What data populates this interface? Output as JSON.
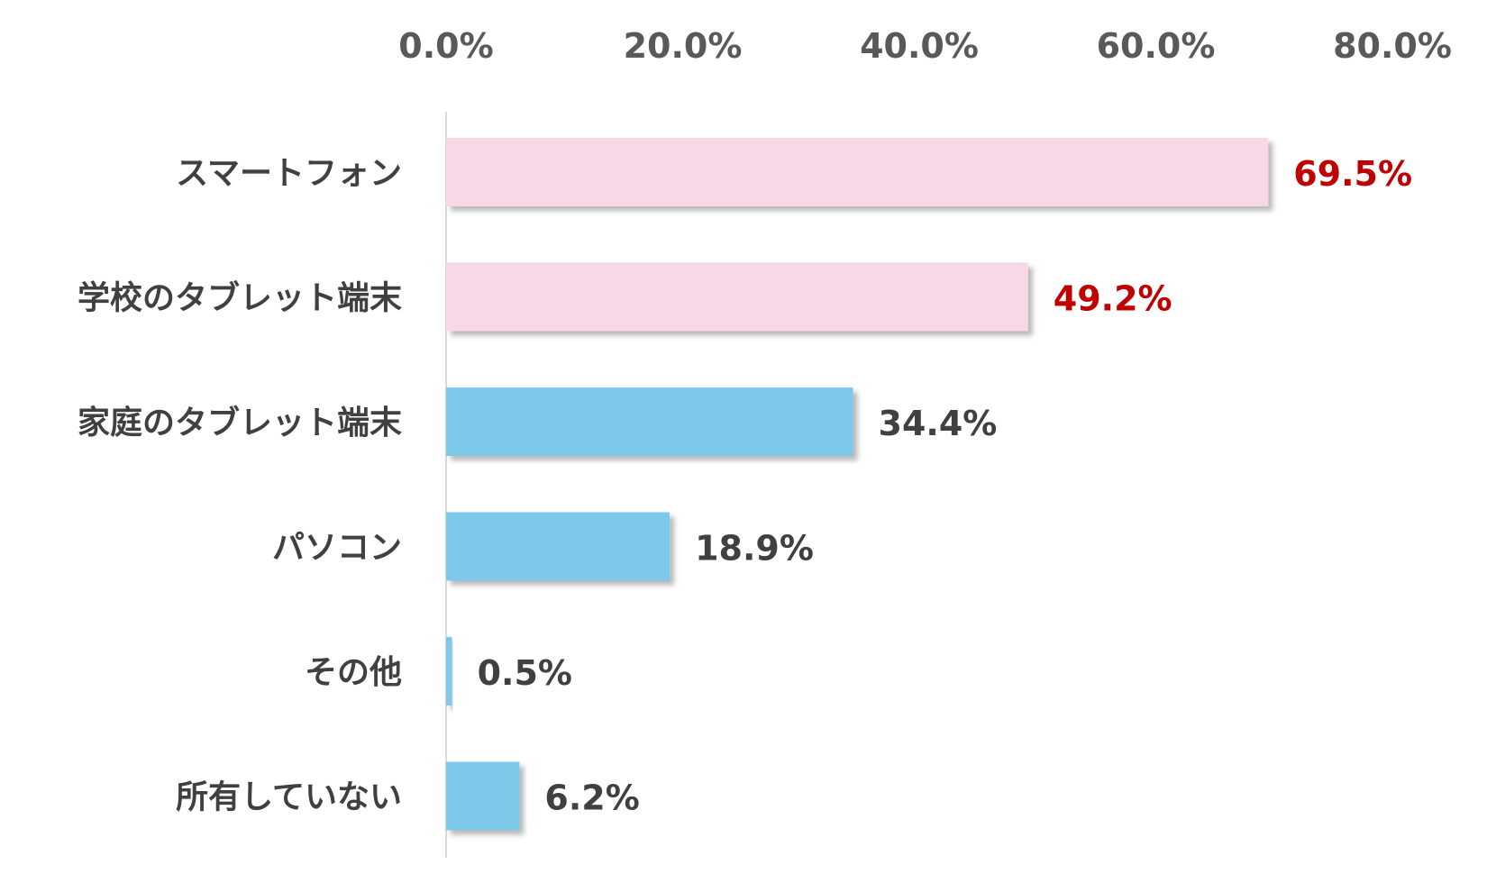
{
  "chart_data": {
    "type": "bar",
    "orientation": "horizontal",
    "categories": [
      "スマートフォン",
      "学校のタブレット端末",
      "家庭のタブレット端末",
      "パソコン",
      "その他",
      "所有していない"
    ],
    "values": [
      69.5,
      49.2,
      34.4,
      18.9,
      0.5,
      6.2
    ],
    "value_labels": [
      "69.5%",
      "49.2%",
      "34.4%",
      "18.9%",
      "0.5%",
      "6.2%"
    ],
    "x_ticks": [
      "0.0%",
      "20.0%",
      "40.0%",
      "60.0%",
      "80.0%"
    ],
    "x_tick_values": [
      0,
      20,
      40,
      60,
      80
    ],
    "xlim": [
      0,
      80
    ],
    "axis_position": "top",
    "grid": false,
    "title": "",
    "xlabel": "",
    "ylabel": "",
    "bar_colors": [
      "#F8D7E6",
      "#F8D7E6",
      "#7BC9EA",
      "#7BC9EA",
      "#7BC9EA",
      "#7BC9EA"
    ],
    "label_colors": [
      "#C00000",
      "#C00000",
      "#404040",
      "#404040",
      "#404040",
      "#404040"
    ]
  }
}
